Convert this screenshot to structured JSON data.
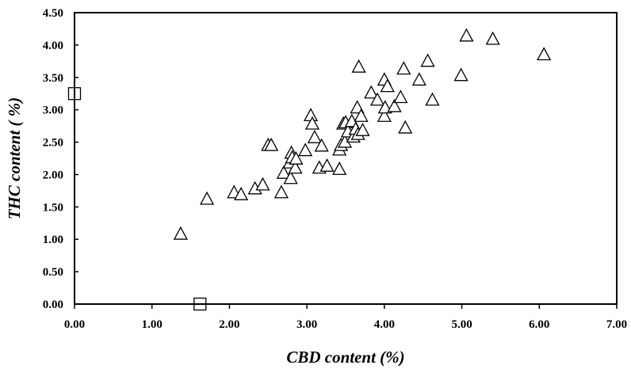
{
  "chart_data": {
    "type": "scatter",
    "title": "",
    "xlabel": "CBD content (%)",
    "ylabel": "THC content ( %)",
    "xlim": [
      0,
      7
    ],
    "ylim": [
      0,
      4.5
    ],
    "x_ticks": [
      "0.00",
      "1.00",
      "2.00",
      "3.00",
      "4.00",
      "5.00",
      "6.00",
      "7.00"
    ],
    "y_ticks": [
      "0.00",
      "0.50",
      "1.00",
      "1.50",
      "2.00",
      "2.50",
      "3.00",
      "3.50",
      "4.00",
      "4.50"
    ],
    "grid": false,
    "series": [
      {
        "marker": "triangle",
        "points": [
          [
            1.37,
            1.08
          ],
          [
            1.71,
            1.62
          ],
          [
            2.06,
            1.72
          ],
          [
            2.15,
            1.69
          ],
          [
            2.33,
            1.78
          ],
          [
            2.43,
            1.84
          ],
          [
            2.5,
            2.45
          ],
          [
            2.54,
            2.45
          ],
          [
            2.67,
            1.72
          ],
          [
            2.7,
            2.02
          ],
          [
            2.78,
            2.18
          ],
          [
            2.79,
            1.94
          ],
          [
            2.8,
            2.33
          ],
          [
            2.81,
            2.26
          ],
          [
            2.85,
            2.1
          ],
          [
            2.86,
            2.24
          ],
          [
            2.98,
            2.37
          ],
          [
            3.05,
            2.91
          ],
          [
            3.07,
            2.78
          ],
          [
            3.1,
            2.57
          ],
          [
            3.16,
            2.1
          ],
          [
            3.19,
            2.44
          ],
          [
            3.26,
            2.13
          ],
          [
            3.42,
            2.08
          ],
          [
            3.42,
            2.38
          ],
          [
            3.44,
            2.45
          ],
          [
            3.47,
            2.78
          ],
          [
            3.49,
            2.5
          ],
          [
            3.5,
            2.8
          ],
          [
            3.53,
            2.66
          ],
          [
            3.58,
            2.82
          ],
          [
            3.6,
            2.58
          ],
          [
            3.63,
            2.7
          ],
          [
            3.65,
            3.03
          ],
          [
            3.66,
            2.62
          ],
          [
            3.67,
            3.66
          ],
          [
            3.7,
            2.9
          ],
          [
            3.72,
            2.68
          ],
          [
            3.83,
            3.26
          ],
          [
            3.91,
            3.15
          ],
          [
            4.0,
            3.46
          ],
          [
            4.0,
            2.9
          ],
          [
            4.01,
            3.03
          ],
          [
            4.04,
            3.36
          ],
          [
            4.13,
            3.05
          ],
          [
            4.21,
            3.19
          ],
          [
            4.25,
            3.63
          ],
          [
            4.27,
            2.72
          ],
          [
            4.45,
            3.46
          ],
          [
            4.56,
            3.75
          ],
          [
            4.62,
            3.15
          ],
          [
            4.99,
            3.53
          ],
          [
            5.06,
            4.14
          ],
          [
            5.4,
            4.09
          ],
          [
            6.06,
            3.85
          ]
        ]
      },
      {
        "marker": "square",
        "points": [
          [
            0.0,
            3.25
          ],
          [
            1.62,
            0.0
          ]
        ]
      }
    ]
  }
}
